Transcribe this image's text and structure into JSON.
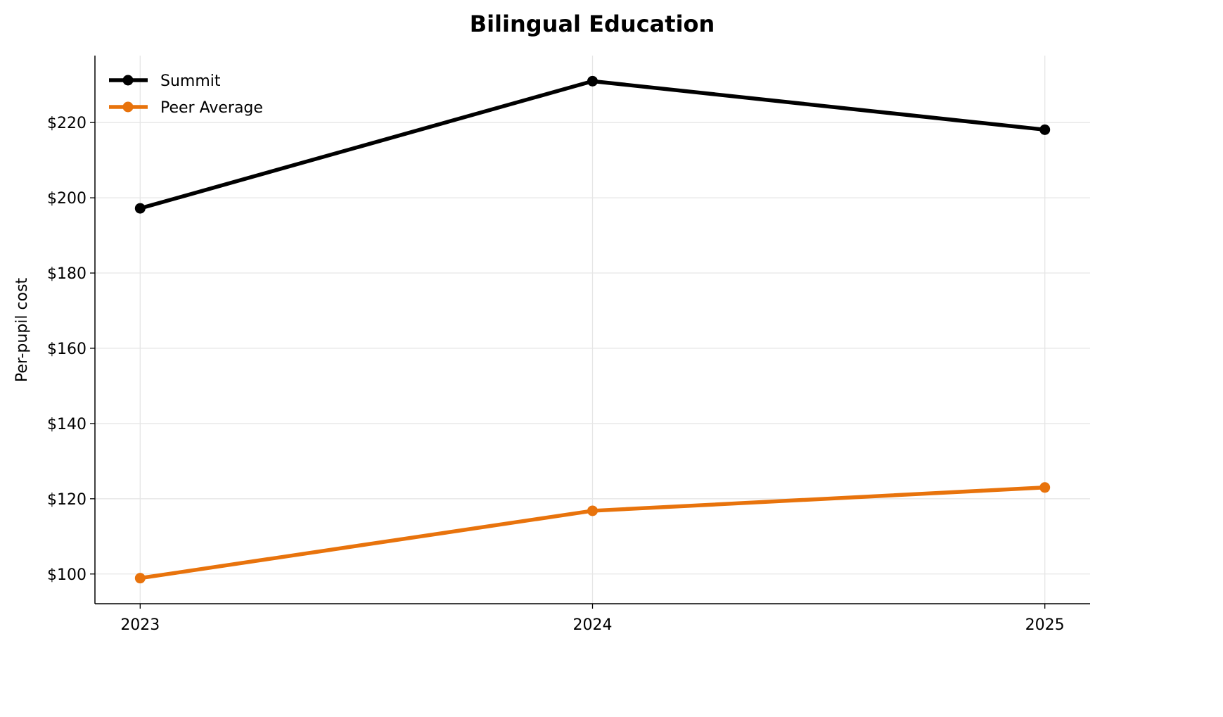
{
  "chart_data": {
    "type": "line",
    "title": "Bilingual Education",
    "xlabel": "",
    "ylabel": "Per-pupil cost",
    "x": [
      2023,
      2024,
      2025
    ],
    "x_tick_labels": [
      "2023",
      "2024",
      "2025"
    ],
    "xlim": [
      2022.9,
      2025.1
    ],
    "ylim": [
      92.1,
      237.8
    ],
    "y_ticks": [
      100,
      120,
      140,
      160,
      180,
      200,
      220
    ],
    "y_tick_labels": [
      "$100",
      "$120",
      "$140",
      "$160",
      "$180",
      "$200",
      "$220"
    ],
    "grid": true,
    "legend_placement": "top-left",
    "series": [
      {
        "name": "Summit",
        "values": [
          197.2,
          231.0,
          218.1
        ],
        "color": "#000000"
      },
      {
        "name": "Peer Average",
        "values": [
          98.9,
          116.8,
          123.0
        ],
        "color": "#E8730C"
      }
    ]
  }
}
